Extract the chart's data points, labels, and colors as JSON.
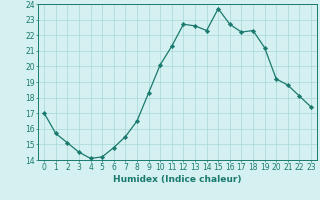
{
  "x": [
    0,
    1,
    2,
    3,
    4,
    5,
    6,
    7,
    8,
    9,
    10,
    11,
    12,
    13,
    14,
    15,
    16,
    17,
    18,
    19,
    20,
    21,
    22,
    23
  ],
  "y": [
    17.0,
    15.7,
    15.1,
    14.5,
    14.1,
    14.2,
    14.8,
    15.5,
    16.5,
    18.3,
    20.1,
    21.3,
    22.7,
    22.6,
    22.3,
    23.7,
    22.7,
    22.2,
    22.3,
    21.2,
    19.2,
    18.8,
    18.1,
    17.4
  ],
  "line_color": "#1a7a6e",
  "marker": "D",
  "marker_size": 2.2,
  "bg_color": "#d4f0f0",
  "grid_color": "#a8d8d8",
  "xlabel": "Humidex (Indice chaleur)",
  "xlim": [
    -0.5,
    23.5
  ],
  "ylim": [
    14,
    24
  ],
  "yticks": [
    14,
    15,
    16,
    17,
    18,
    19,
    20,
    21,
    22,
    23,
    24
  ],
  "xticks": [
    0,
    1,
    2,
    3,
    4,
    5,
    6,
    7,
    8,
    9,
    10,
    11,
    12,
    13,
    14,
    15,
    16,
    17,
    18,
    19,
    20,
    21,
    22,
    23
  ],
  "tick_color": "#1a7a6e",
  "label_fontsize": 6.5,
  "tick_fontsize": 5.5,
  "spine_color": "#1a7a6e"
}
